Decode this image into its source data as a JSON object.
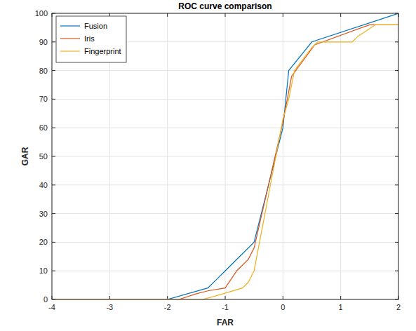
{
  "chart_data": {
    "type": "line",
    "title": "ROC curve comparison",
    "x_label": "FAR",
    "y_label": "GAR",
    "xlim": [
      -4,
      2
    ],
    "ylim": [
      0,
      100
    ],
    "xticks": [
      -4,
      -3,
      -2,
      -1,
      0,
      1,
      2
    ],
    "yticks": [
      0,
      10,
      20,
      30,
      40,
      50,
      60,
      70,
      80,
      90,
      100
    ],
    "grid": true,
    "legend": "northwest",
    "series": [
      {
        "name": "Fusion",
        "color": "#0072bd",
        "x": [
          -4,
          -2,
          -1.3,
          -1.1,
          -1,
          -0.9,
          -0.5,
          0,
          0.1,
          0.5,
          2
        ],
        "values": [
          0,
          0,
          4,
          8,
          10,
          12,
          20,
          60,
          80,
          90,
          100
        ]
      },
      {
        "name": "Iris",
        "color": "#d95319",
        "x": [
          -4,
          -1.8,
          -1.5,
          -1.3,
          -1,
          -0.8,
          -0.6,
          -0.5,
          0,
          0.15,
          0.55,
          1.5,
          2
        ],
        "values": [
          0,
          0,
          2,
          3,
          4,
          10,
          14,
          18,
          62,
          78,
          89,
          96,
          96
        ]
      },
      {
        "name": "Fingerprint",
        "color": "#edb120",
        "x": [
          -4,
          -1.4,
          -1.2,
          -0.7,
          -0.6,
          -0.5,
          0,
          0.1,
          0.2,
          0.5,
          0.6,
          1.2,
          1.3,
          1.6,
          2
        ],
        "values": [
          0,
          0,
          1,
          4,
          6,
          10,
          63,
          70,
          80,
          88,
          90,
          90,
          92,
          96,
          96
        ]
      }
    ]
  }
}
